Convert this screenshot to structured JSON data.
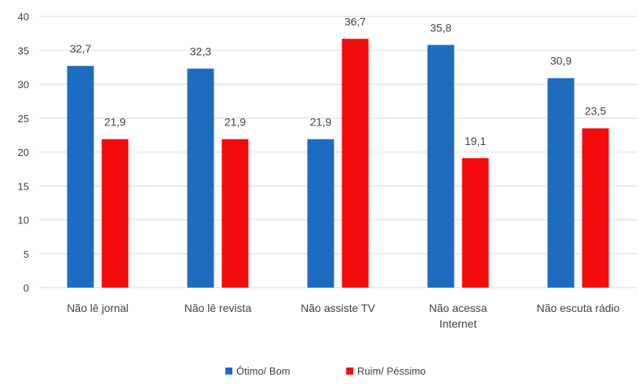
{
  "chart_data": {
    "type": "bar",
    "categories": [
      [
        "Não lê jornal"
      ],
      [
        "Não lê revista"
      ],
      [
        "Não assiste TV"
      ],
      [
        "Não acessa",
        "Internet"
      ],
      [
        "Não escuta rádio"
      ]
    ],
    "series": [
      {
        "name": "Ótimo/ Bom",
        "color": "#1F6BC0",
        "values": [
          32.7,
          32.3,
          21.9,
          35.8,
          30.9
        ],
        "labels": [
          "32,7",
          "32,3",
          "21,9",
          "35,8",
          "30,9"
        ]
      },
      {
        "name": "Ruim/ Péssimo",
        "color": "#F20C0C",
        "values": [
          21.9,
          21.9,
          36.7,
          19.1,
          23.5
        ],
        "labels": [
          "21,9",
          "21,9",
          "36,7",
          "19,1",
          "23,5"
        ]
      }
    ],
    "ylim": [
      0,
      40
    ],
    "yticks": [
      0,
      5,
      10,
      15,
      20,
      25,
      30,
      35,
      40
    ],
    "grid": true,
    "gridColor": "#D9D9D9",
    "legend": "bottom-center"
  }
}
